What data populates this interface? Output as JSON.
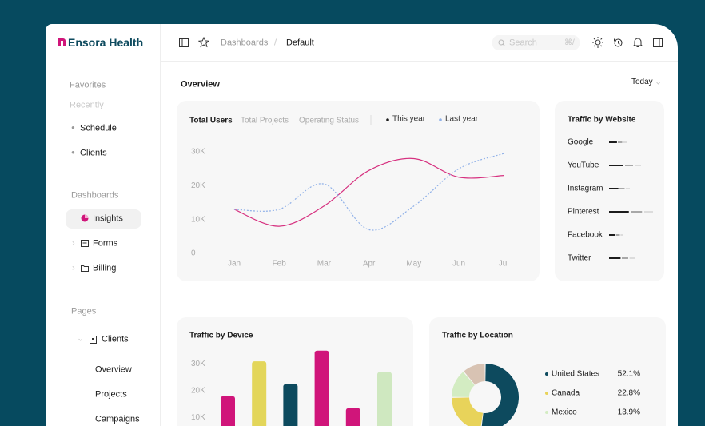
{
  "sidebar": {
    "brand": "Ensora Health",
    "favorites": "Favorites",
    "recently": "Recently",
    "favorite_items": [
      "Schedule",
      "Clients"
    ],
    "dashboards": "Dashboards",
    "dashboard_items": [
      "Insights",
      "Forms",
      "Billing"
    ],
    "pages": "Pages",
    "page_group": "Clients",
    "page_items": [
      "Overview",
      "Projects",
      "Campaigns"
    ]
  },
  "header": {
    "breadcrumb": [
      "Dashboards",
      "Default"
    ],
    "search": "Search",
    "shortcut": "⌘/"
  },
  "overview": {
    "title": "Overview",
    "period": "Today"
  },
  "chart_data": [
    {
      "type": "line",
      "tabs": [
        "Total Users",
        "Total Projects",
        "Operating Status"
      ],
      "categories": [
        "Jan",
        "Feb",
        "Mar",
        "Apr",
        "May",
        "Jun",
        "Jul"
      ],
      "series": [
        {
          "name": "This year",
          "color": "#d6307f",
          "values": [
            13000,
            8000,
            14000,
            24500,
            28000,
            22500,
            23000
          ]
        },
        {
          "name": "Last year",
          "color": "#8fb0e8",
          "values": [
            13000,
            13000,
            20500,
            7000,
            14000,
            25000,
            29500
          ]
        }
      ],
      "ylim": [
        0,
        30000
      ],
      "yticks": [
        0,
        {
          "value": 10000,
          "label": "10K"
        },
        {
          "value": 20000,
          "label": "20K"
        },
        {
          "value": 30000,
          "label": "30K"
        }
      ]
    },
    {
      "type": "hbar",
      "title": "Traffic by Website",
      "categories": [
        "Google",
        "YouTube",
        "Instagram",
        "Pinterest",
        "Facebook",
        "Twitter"
      ],
      "values": [
        22,
        40,
        26,
        55,
        18,
        32
      ],
      "xlim": [
        0,
        60
      ]
    },
    {
      "type": "bar",
      "title": "Traffic by Device",
      "categories": [
        null,
        null,
        null,
        null,
        null,
        null
      ],
      "values": [
        18000,
        31000,
        22500,
        35000,
        13500,
        27000
      ],
      "colors": [
        "#d0157a",
        "#e3d65a",
        "#0d4a5e",
        "#d0157a",
        "#d0157a",
        "#cfe8c0"
      ],
      "ylim": [
        0,
        40000
      ],
      "yticks": [
        {
          "value": 10000,
          "label": "10K"
        },
        {
          "value": 20000,
          "label": "20K"
        },
        {
          "value": 30000,
          "label": "30K"
        }
      ]
    },
    {
      "type": "donut",
      "title": "Traffic by Location",
      "categories": [
        "United States",
        "Canada",
        "Mexico",
        null
      ],
      "values": [
        52.1,
        22.8,
        13.9,
        11.2
      ],
      "value_labels": [
        "52.1%",
        "22.8%",
        "13.9%",
        null
      ],
      "colors": [
        "#0d4a5e",
        "#e8d35a",
        "#d3ecc2",
        "#d8c3b3"
      ]
    }
  ]
}
